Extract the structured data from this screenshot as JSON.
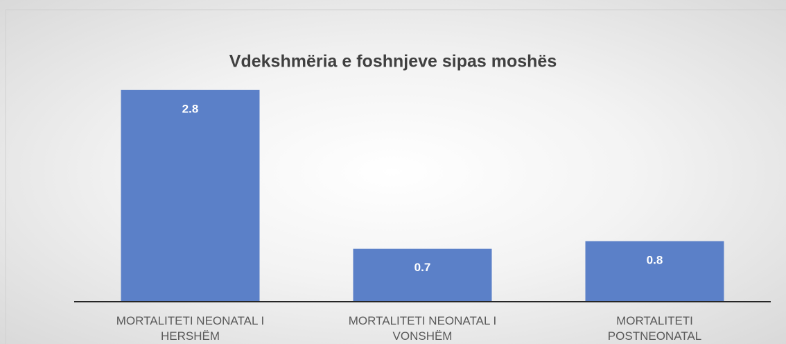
{
  "chart_data": {
    "type": "bar",
    "title": "Vdekshmëria e foshnjeve sipas moshës",
    "categories": [
      "MORTALITETI NEONATAL I HERSHËM",
      "MORTALITETI NEONATAL I VONSHËM",
      "MORTALITETI POSTNEONATAL"
    ],
    "values": [
      2.8,
      0.7,
      0.8
    ],
    "color": "#5b80c8",
    "ylim": [
      0,
      3
    ],
    "grid": false
  }
}
